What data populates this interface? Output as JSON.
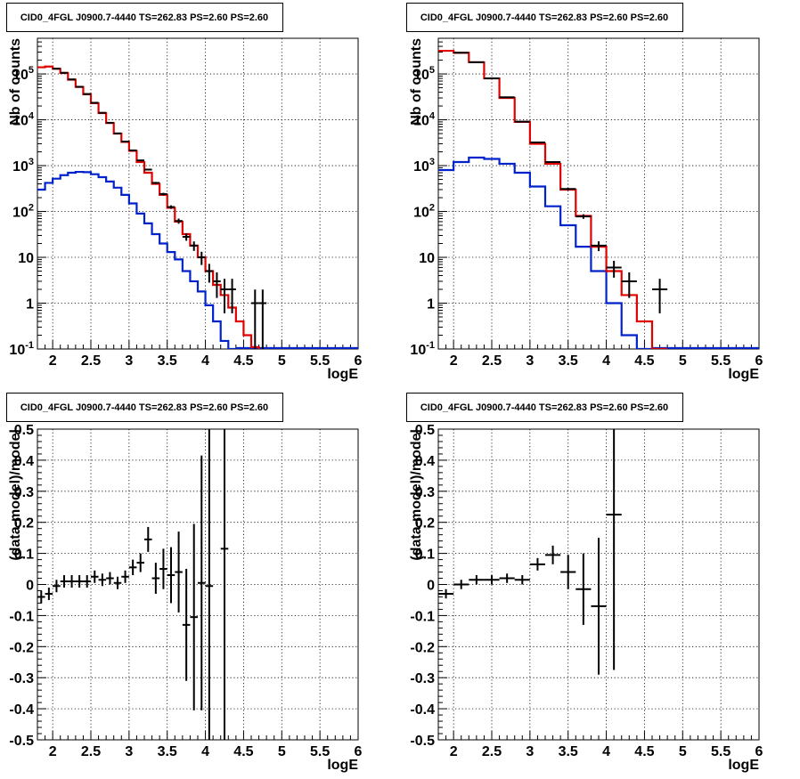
{
  "chart_data": [
    {
      "id": "counts-left",
      "type": "line",
      "title": "CID0_4FGL J0900.7-4440 TS=262.83 PS=2.60 PS=2.60",
      "xlabel": "logE",
      "ylabel": "Nb of counts",
      "xlim": [
        1.8,
        6.0
      ],
      "ylim": [
        0.1,
        600000
      ],
      "yscale": "log",
      "grid": true,
      "xticks": [
        "2",
        "2.5",
        "3",
        "3.5",
        "4",
        "4.5",
        "5",
        "5.5",
        "6"
      ],
      "yticks": [
        "10^-1",
        "1",
        "10",
        "10^2",
        "10^3",
        "10^4",
        "10^5"
      ],
      "colors": {
        "model_total": "#e00000",
        "model_source": "#0022cc",
        "data": "#000000"
      },
      "bin_width": 0.1,
      "model_total": [
        {
          "x": 1.85,
          "y": 140000
        },
        {
          "x": 1.95,
          "y": 145000
        },
        {
          "x": 2.05,
          "y": 130000
        },
        {
          "x": 2.15,
          "y": 105000
        },
        {
          "x": 2.25,
          "y": 75000
        },
        {
          "x": 2.35,
          "y": 52000
        },
        {
          "x": 2.45,
          "y": 36000
        },
        {
          "x": 2.55,
          "y": 23000
        },
        {
          "x": 2.65,
          "y": 14000
        },
        {
          "x": 2.75,
          "y": 8500
        },
        {
          "x": 2.85,
          "y": 5000
        },
        {
          "x": 2.95,
          "y": 3300
        },
        {
          "x": 3.05,
          "y": 2100
        },
        {
          "x": 3.15,
          "y": 1200
        },
        {
          "x": 3.25,
          "y": 700
        },
        {
          "x": 3.35,
          "y": 400
        },
        {
          "x": 3.45,
          "y": 230
        },
        {
          "x": 3.55,
          "y": 120
        },
        {
          "x": 3.65,
          "y": 60
        },
        {
          "x": 3.75,
          "y": 32
        },
        {
          "x": 3.85,
          "y": 18
        },
        {
          "x": 3.95,
          "y": 10
        },
        {
          "x": 4.05,
          "y": 5
        },
        {
          "x": 4.15,
          "y": 2.5
        },
        {
          "x": 4.25,
          "y": 1.5
        },
        {
          "x": 4.35,
          "y": 0.8
        },
        {
          "x": 4.45,
          "y": 0.4
        },
        {
          "x": 4.55,
          "y": 0.2
        },
        {
          "x": 4.65,
          "y": 0.11
        }
      ],
      "model_source": [
        {
          "x": 1.85,
          "y": 300
        },
        {
          "x": 1.95,
          "y": 420
        },
        {
          "x": 2.05,
          "y": 520
        },
        {
          "x": 2.15,
          "y": 620
        },
        {
          "x": 2.25,
          "y": 700
        },
        {
          "x": 2.35,
          "y": 730
        },
        {
          "x": 2.45,
          "y": 720
        },
        {
          "x": 2.55,
          "y": 650
        },
        {
          "x": 2.65,
          "y": 560
        },
        {
          "x": 2.75,
          "y": 450
        },
        {
          "x": 2.85,
          "y": 330
        },
        {
          "x": 2.95,
          "y": 230
        },
        {
          "x": 3.05,
          "y": 150
        },
        {
          "x": 3.15,
          "y": 90
        },
        {
          "x": 3.25,
          "y": 55
        },
        {
          "x": 3.35,
          "y": 32
        },
        {
          "x": 3.45,
          "y": 20
        },
        {
          "x": 3.55,
          "y": 13
        },
        {
          "x": 3.65,
          "y": 9
        },
        {
          "x": 3.75,
          "y": 5
        },
        {
          "x": 3.85,
          "y": 3
        },
        {
          "x": 3.95,
          "y": 1.8
        },
        {
          "x": 4.05,
          "y": 0.9
        },
        {
          "x": 4.15,
          "y": 0.4
        },
        {
          "x": 4.25,
          "y": 0.15
        },
        {
          "x": 4.35,
          "y": 0.06
        }
      ],
      "data_points": [
        {
          "x": 2.05,
          "y": 130000,
          "err": 360
        },
        {
          "x": 2.15,
          "y": 106000,
          "err": 330
        },
        {
          "x": 2.25,
          "y": 76000,
          "err": 280
        },
        {
          "x": 2.35,
          "y": 52500,
          "err": 230
        },
        {
          "x": 2.45,
          "y": 36500,
          "err": 190
        },
        {
          "x": 2.55,
          "y": 23500,
          "err": 150
        },
        {
          "x": 2.65,
          "y": 14200,
          "err": 120
        },
        {
          "x": 2.75,
          "y": 8600,
          "err": 93
        },
        {
          "x": 2.85,
          "y": 5050,
          "err": 71
        },
        {
          "x": 2.95,
          "y": 3350,
          "err": 58
        },
        {
          "x": 3.05,
          "y": 2150,
          "err": 46
        },
        {
          "x": 3.15,
          "y": 1300,
          "err": 36
        },
        {
          "x": 3.25,
          "y": 820,
          "err": 29
        },
        {
          "x": 3.35,
          "y": 420,
          "err": 20
        },
        {
          "x": 3.45,
          "y": 240,
          "err": 15
        },
        {
          "x": 3.55,
          "y": 125,
          "err": 11
        },
        {
          "x": 3.65,
          "y": 62,
          "err": 8
        },
        {
          "x": 3.75,
          "y": 28,
          "err": 5
        },
        {
          "x": 3.85,
          "y": 18,
          "err": 4.2
        },
        {
          "x": 3.95,
          "y": 10,
          "err": 3.2
        },
        {
          "x": 4.05,
          "y": 5,
          "err": 2.2
        },
        {
          "x": 4.15,
          "y": 3,
          "err": 1.7
        },
        {
          "x": 4.25,
          "y": 2,
          "err": 1.4
        },
        {
          "x": 4.35,
          "y": 2,
          "err": 1.4
        },
        {
          "x": 4.65,
          "y": 1,
          "err": 0.98
        },
        {
          "x": 4.75,
          "y": 1,
          "err": 0.98
        }
      ]
    },
    {
      "id": "counts-right",
      "type": "line",
      "title": "CID0_4FGL J0900.7-4440 TS=262.83 PS=2.60 PS=2.60",
      "xlabel": "logE",
      "ylabel": "Nb of counts",
      "xlim": [
        1.8,
        6.0
      ],
      "ylim": [
        0.1,
        600000
      ],
      "yscale": "log",
      "grid": true,
      "xticks": [
        "2",
        "2.5",
        "3",
        "3.5",
        "4",
        "4.5",
        "5",
        "5.5",
        "6"
      ],
      "yticks": [
        "10^-1",
        "1",
        "10",
        "10^2",
        "10^3",
        "10^4",
        "10^5"
      ],
      "colors": {
        "model_total": "#e00000",
        "model_source": "#0022cc",
        "data": "#000000"
      },
      "bin_width": 0.2,
      "model_total": [
        {
          "x": 1.9,
          "y": 320000
        },
        {
          "x": 2.1,
          "y": 290000
        },
        {
          "x": 2.3,
          "y": 180000
        },
        {
          "x": 2.5,
          "y": 80000
        },
        {
          "x": 2.7,
          "y": 30000
        },
        {
          "x": 2.9,
          "y": 9000
        },
        {
          "x": 3.1,
          "y": 3000
        },
        {
          "x": 3.3,
          "y": 1100
        },
        {
          "x": 3.5,
          "y": 300
        },
        {
          "x": 3.7,
          "y": 80
        },
        {
          "x": 3.9,
          "y": 17
        },
        {
          "x": 4.1,
          "y": 5
        },
        {
          "x": 4.3,
          "y": 1.5
        },
        {
          "x": 4.5,
          "y": 0.4
        },
        {
          "x": 4.7,
          "y": 0.1
        }
      ],
      "model_source": [
        {
          "x": 1.9,
          "y": 800
        },
        {
          "x": 2.1,
          "y": 1200
        },
        {
          "x": 2.3,
          "y": 1500
        },
        {
          "x": 2.5,
          "y": 1400
        },
        {
          "x": 2.7,
          "y": 1100
        },
        {
          "x": 2.9,
          "y": 700
        },
        {
          "x": 3.1,
          "y": 350
        },
        {
          "x": 3.3,
          "y": 130
        },
        {
          "x": 3.5,
          "y": 50
        },
        {
          "x": 3.7,
          "y": 17
        },
        {
          "x": 3.9,
          "y": 5
        },
        {
          "x": 4.1,
          "y": 1
        },
        {
          "x": 4.3,
          "y": 0.2
        },
        {
          "x": 4.5,
          "y": 0.1
        }
      ],
      "data_points": [
        {
          "x": 2.1,
          "y": 290000,
          "err": 540
        },
        {
          "x": 2.3,
          "y": 180000,
          "err": 420
        },
        {
          "x": 2.5,
          "y": 80000,
          "err": 280
        },
        {
          "x": 2.7,
          "y": 31000,
          "err": 175
        },
        {
          "x": 2.9,
          "y": 9100,
          "err": 95
        },
        {
          "x": 3.1,
          "y": 3200,
          "err": 56
        },
        {
          "x": 3.3,
          "y": 1200,
          "err": 35
        },
        {
          "x": 3.5,
          "y": 310,
          "err": 18
        },
        {
          "x": 3.7,
          "y": 78,
          "err": 9
        },
        {
          "x": 3.9,
          "y": 18,
          "err": 4.3
        },
        {
          "x": 4.1,
          "y": 6,
          "err": 2.4
        },
        {
          "x": 4.3,
          "y": 3,
          "err": 1.7
        },
        {
          "x": 4.7,
          "y": 2,
          "err": 1.4
        }
      ]
    },
    {
      "id": "residual-left",
      "type": "scatter",
      "title": "CID0_4FGL J0900.7-4440 TS=262.83 PS=2.60 PS=2.60",
      "xlabel": "logE",
      "ylabel": "(data-model)/model",
      "xlim": [
        1.8,
        6.0
      ],
      "ylim": [
        -0.5,
        0.5
      ],
      "yscale": "linear",
      "grid": true,
      "xticks": [
        "2",
        "2.5",
        "3",
        "3.5",
        "4",
        "4.5",
        "5",
        "5.5",
        "6"
      ],
      "yticks": [
        "-0.5",
        "-0.4",
        "-0.3",
        "-0.2",
        "-0.1",
        "0",
        "0.1",
        "0.2",
        "0.3",
        "0.4",
        "0.5"
      ],
      "colors": {
        "data": "#000000"
      },
      "bin_width": 0.1,
      "data_points": [
        {
          "x": 1.85,
          "y": -0.04,
          "err": 0.02
        },
        {
          "x": 1.95,
          "y": -0.03,
          "err": 0.02
        },
        {
          "x": 2.05,
          "y": -0.005,
          "err": 0.02
        },
        {
          "x": 2.15,
          "y": 0.01,
          "err": 0.02
        },
        {
          "x": 2.25,
          "y": 0.01,
          "err": 0.02
        },
        {
          "x": 2.35,
          "y": 0.01,
          "err": 0.02
        },
        {
          "x": 2.45,
          "y": 0.01,
          "err": 0.02
        },
        {
          "x": 2.55,
          "y": 0.025,
          "err": 0.02
        },
        {
          "x": 2.65,
          "y": 0.015,
          "err": 0.02
        },
        {
          "x": 2.75,
          "y": 0.02,
          "err": 0.02
        },
        {
          "x": 2.85,
          "y": 0.005,
          "err": 0.02
        },
        {
          "x": 2.95,
          "y": 0.025,
          "err": 0.02
        },
        {
          "x": 3.05,
          "y": 0.055,
          "err": 0.025
        },
        {
          "x": 3.15,
          "y": 0.07,
          "err": 0.03
        },
        {
          "x": 3.25,
          "y": 0.145,
          "err": 0.04
        },
        {
          "x": 3.35,
          "y": 0.02,
          "err": 0.05
        },
        {
          "x": 3.45,
          "y": 0.05,
          "err": 0.065
        },
        {
          "x": 3.55,
          "y": 0.03,
          "err": 0.09
        },
        {
          "x": 3.65,
          "y": 0.04,
          "err": 0.13
        },
        {
          "x": 3.75,
          "y": -0.13,
          "err": 0.18
        },
        {
          "x": 3.85,
          "y": -0.105,
          "err": 0.3
        },
        {
          "x": 3.95,
          "y": 0.005,
          "err": 0.41
        },
        {
          "x": 4.05,
          "y": -0.005,
          "err": 0.6
        },
        {
          "x": 4.25,
          "y": 0.115,
          "err": 0.8
        }
      ]
    },
    {
      "id": "residual-right",
      "type": "scatter",
      "title": "CID0_4FGL J0900.7-4440 TS=262.83 PS=2.60 PS=2.60",
      "xlabel": "logE",
      "ylabel": "(data-model)/model",
      "xlim": [
        1.8,
        6.0
      ],
      "ylim": [
        -0.5,
        0.5
      ],
      "yscale": "linear",
      "grid": true,
      "xticks": [
        "2",
        "2.5",
        "3",
        "3.5",
        "4",
        "4.5",
        "5",
        "5.5",
        "6"
      ],
      "yticks": [
        "-0.5",
        "-0.4",
        "-0.3",
        "-0.2",
        "-0.1",
        "0",
        "0.1",
        "0.2",
        "0.3",
        "0.4",
        "0.5"
      ],
      "colors": {
        "data": "#000000"
      },
      "bin_width": 0.2,
      "data_points": [
        {
          "x": 1.9,
          "y": -0.03,
          "err": 0.015
        },
        {
          "x": 2.1,
          "y": 0.0,
          "err": 0.015
        },
        {
          "x": 2.3,
          "y": 0.015,
          "err": 0.015
        },
        {
          "x": 2.5,
          "y": 0.015,
          "err": 0.015
        },
        {
          "x": 2.7,
          "y": 0.02,
          "err": 0.015
        },
        {
          "x": 2.9,
          "y": 0.015,
          "err": 0.015
        },
        {
          "x": 3.1,
          "y": 0.065,
          "err": 0.02
        },
        {
          "x": 3.3,
          "y": 0.095,
          "err": 0.03
        },
        {
          "x": 3.5,
          "y": 0.04,
          "err": 0.055
        },
        {
          "x": 3.7,
          "y": -0.015,
          "err": 0.115
        },
        {
          "x": 3.9,
          "y": -0.07,
          "err": 0.22
        },
        {
          "x": 4.1,
          "y": 0.225,
          "err": 0.5
        }
      ]
    }
  ]
}
